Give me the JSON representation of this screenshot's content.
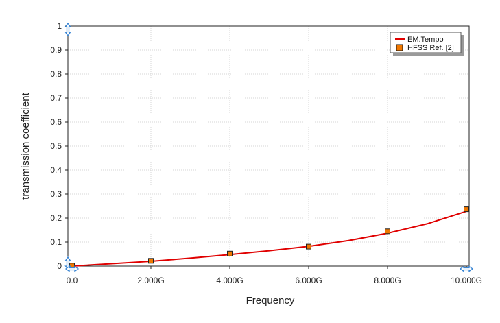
{
  "chart_data": {
    "type": "line",
    "xlabel": "Frequency",
    "ylabel": "transmission coefficient",
    "xlim": [
      0,
      10
    ],
    "ylim": [
      0,
      1
    ],
    "x_ticks": [
      {
        "value": 0,
        "label": "0.0"
      },
      {
        "value": 2,
        "label": "2.000G"
      },
      {
        "value": 4,
        "label": "4.000G"
      },
      {
        "value": 6,
        "label": "6.000G"
      },
      {
        "value": 8,
        "label": "8.000G"
      },
      {
        "value": 10,
        "label": "10.000G"
      }
    ],
    "y_ticks": [
      {
        "value": 0,
        "label": "0"
      },
      {
        "value": 0.1,
        "label": "0.1"
      },
      {
        "value": 0.2,
        "label": "0.2"
      },
      {
        "value": 0.3,
        "label": "0.3"
      },
      {
        "value": 0.4,
        "label": "0.4"
      },
      {
        "value": 0.5,
        "label": "0.5"
      },
      {
        "value": 0.6,
        "label": "0.6"
      },
      {
        "value": 0.7,
        "label": "0.7"
      },
      {
        "value": 0.8,
        "label": "0.8"
      },
      {
        "value": 0.9,
        "label": "0.9"
      },
      {
        "value": 1,
        "label": "1"
      }
    ],
    "grid": true,
    "legend_position": "top-right",
    "series": [
      {
        "name": "EM.Tempo",
        "kind": "line",
        "color": "#e00000",
        "x": [
          0,
          1,
          2,
          3,
          4,
          5,
          6,
          7,
          8,
          9,
          10
        ],
        "y": [
          0.0,
          0.01,
          0.02,
          0.033,
          0.048,
          0.064,
          0.082,
          0.106,
          0.137,
          0.176,
          0.228
        ]
      },
      {
        "name": "HFSS Ref. [2]",
        "kind": "marker",
        "color": "#f07800",
        "x": [
          0,
          2,
          4,
          6,
          8,
          10
        ],
        "y": [
          0.002,
          0.022,
          0.052,
          0.081,
          0.145,
          0.237
        ]
      }
    ]
  }
}
